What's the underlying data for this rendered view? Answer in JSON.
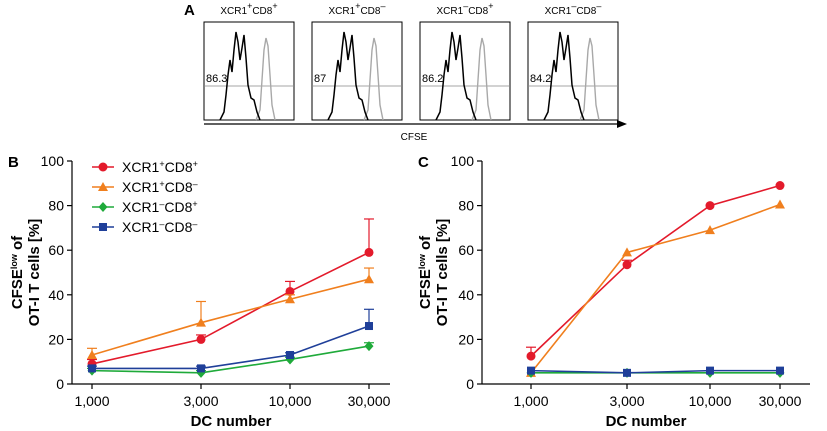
{
  "panel_a": {
    "letter": "A",
    "histograms": [
      {
        "title": "XCR1<sup>+</sup>CD8<sup>+</sup>",
        "percent": "86.3"
      },
      {
        "title": "XCR1<sup>+</sup>CD8<sup>–</sup>",
        "percent": "87"
      },
      {
        "title": "XCR1<sup>–</sup>CD8<sup>+</sup>",
        "percent": "86.2"
      },
      {
        "title": "XCR1<sup>–</sup>CD8<sup>–</sup>",
        "percent": "84.2"
      }
    ],
    "xlabel": "CFSE",
    "line_colors": {
      "sample": "#000000",
      "reference": "#a8a8a8"
    }
  },
  "chart_data": [
    {
      "panel": "B",
      "type": "line",
      "categories": [
        "1,000",
        "3,000",
        "10,000",
        "30,000"
      ],
      "xlabel": "DC number",
      "ylabel_line1": "CFSE<sup>low</sup> of",
      "ylabel_line2": "OT-I T cells [%]",
      "yticks": [
        "0",
        "20",
        "40",
        "60",
        "80",
        "100"
      ],
      "ylim": [
        0,
        100
      ],
      "legend": "top-left",
      "series": [
        {
          "name": "XCR1<sup>+</sup>CD8<sup>+</sup>",
          "marker": "circle",
          "color": "#e31a2b",
          "values": [
            9,
            20,
            41.5,
            59
          ],
          "err": [
            2,
            2,
            4.5,
            15
          ]
        },
        {
          "name": "XCR1<sup>+</sup>CD8<sup>–</sup>",
          "marker": "triangle",
          "color": "#f07f1e",
          "values": [
            13,
            27.5,
            38,
            47
          ],
          "err": [
            3,
            9.5,
            2,
            5
          ]
        },
        {
          "name": "XCR1<sup>–</sup>CD8<sup>+</sup>",
          "marker": "diamond",
          "color": "#1faa3a",
          "values": [
            6,
            5,
            11,
            17
          ],
          "err": [
            1,
            1,
            1,
            1.5
          ]
        },
        {
          "name": "XCR1<sup>–</sup>CD8<sup>–</sup>",
          "marker": "square",
          "color": "#1f3f99",
          "values": [
            7,
            7,
            13,
            26
          ],
          "err": [
            1,
            1,
            1,
            7.5
          ]
        }
      ]
    },
    {
      "panel": "C",
      "type": "line",
      "categories": [
        "1,000",
        "3,000",
        "10,000",
        "30,000"
      ],
      "xlabel": "DC number",
      "ylabel_line1": "CFSE<sup>low</sup> of",
      "ylabel_line2": "OT-I T cells [%]",
      "yticks": [
        "0",
        "20",
        "40",
        "60",
        "80",
        "100"
      ],
      "ylim": [
        0,
        100
      ],
      "series": [
        {
          "name": "XCR1<sup>+</sup>CD8<sup>+</sup>",
          "marker": "circle",
          "color": "#e31a2b",
          "values": [
            12.5,
            53.5,
            80,
            89
          ],
          "err": [
            4,
            2,
            0,
            0
          ]
        },
        {
          "name": "XCR1<sup>+</sup>CD8<sup>–</sup>",
          "marker": "triangle",
          "color": "#f07f1e",
          "values": [
            5,
            59,
            69,
            80.5
          ],
          "err": [
            0,
            0,
            0,
            0
          ]
        },
        {
          "name": "XCR1<sup>–</sup>CD8<sup>+</sup>",
          "marker": "diamond",
          "color": "#1faa3a",
          "values": [
            5,
            5,
            5,
            5
          ],
          "err": [
            0,
            0,
            0,
            0
          ]
        },
        {
          "name": "XCR1<sup>–</sup>CD8<sup>–</sup>",
          "marker": "square",
          "color": "#1f3f99",
          "values": [
            6,
            5,
            6,
            6
          ],
          "err": [
            0,
            0,
            0,
            0
          ]
        }
      ]
    }
  ]
}
